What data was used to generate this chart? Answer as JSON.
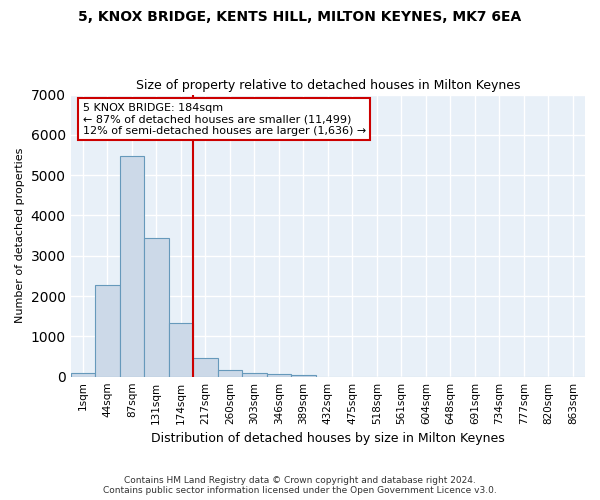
{
  "title1": "5, KNOX BRIDGE, KENTS HILL, MILTON KEYNES, MK7 6EA",
  "title2": "Size of property relative to detached houses in Milton Keynes",
  "xlabel": "Distribution of detached houses by size in Milton Keynes",
  "ylabel": "Number of detached properties",
  "bar_color": "#ccd9e8",
  "bar_edge_color": "#6699bb",
  "categories": [
    "1sqm",
    "44sqm",
    "87sqm",
    "131sqm",
    "174sqm",
    "217sqm",
    "260sqm",
    "303sqm",
    "346sqm",
    "389sqm",
    "432sqm",
    "475sqm",
    "518sqm",
    "561sqm",
    "604sqm",
    "648sqm",
    "691sqm",
    "734sqm",
    "777sqm",
    "820sqm",
    "863sqm"
  ],
  "values": [
    80,
    2280,
    5470,
    3450,
    1320,
    470,
    170,
    95,
    55,
    30,
    0,
    0,
    0,
    0,
    0,
    0,
    0,
    0,
    0,
    0,
    0
  ],
  "vline_color": "#cc0000",
  "annotation_text": "5 KNOX BRIDGE: 184sqm\n← 87% of detached houses are smaller (11,499)\n12% of semi-detached houses are larger (1,636) →",
  "annotation_box_color": "white",
  "annotation_edge_color": "#cc0000",
  "ylim": [
    0,
    7000
  ],
  "yticks": [
    0,
    1000,
    2000,
    3000,
    4000,
    5000,
    6000,
    7000
  ],
  "footnote": "Contains HM Land Registry data © Crown copyright and database right 2024.\nContains public sector information licensed under the Open Government Licence v3.0.",
  "bg_color": "#e8f0f8",
  "grid_color": "white",
  "vline_index": 4.5
}
